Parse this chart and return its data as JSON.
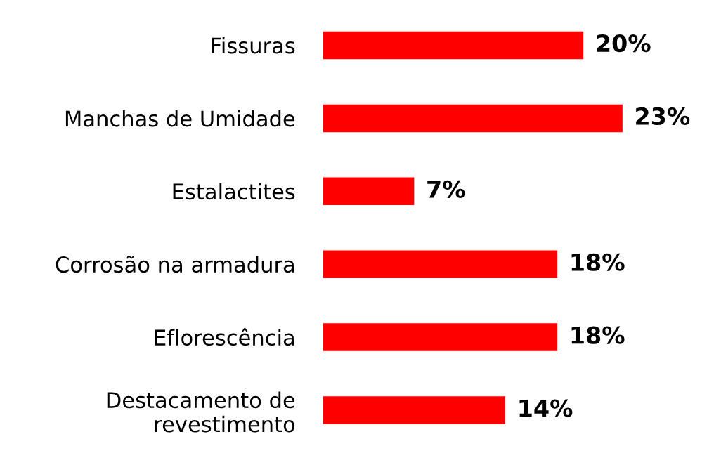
{
  "chart_data": {
    "type": "bar",
    "orientation": "horizontal",
    "categories": [
      "Fissuras",
      "Manchas de Umidade",
      "Estalactites",
      "Corrosão na armadura",
      "Eflorescência",
      "Destacamento de\nrevestimento"
    ],
    "values": [
      20,
      23,
      7,
      18,
      18,
      14
    ],
    "value_labels": [
      "20%",
      "23%",
      "7%",
      "18%",
      "18%",
      "14%"
    ],
    "color": "#ff0000",
    "tick_labels": "y"
  }
}
